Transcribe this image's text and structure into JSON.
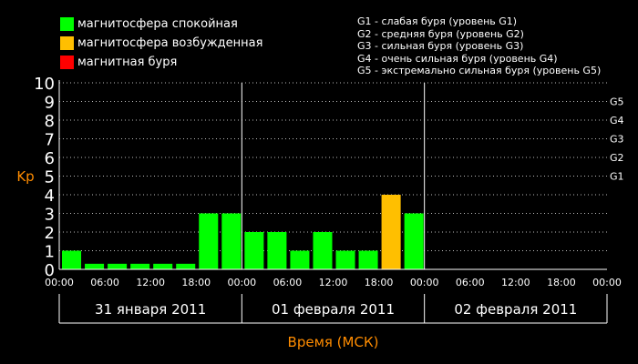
{
  "legend": [
    {
      "label": "магнитосфера спокойная",
      "color": "#00ff00"
    },
    {
      "label": "магнитосфера возбужденная",
      "color": "#ffbf00"
    },
    {
      "label": "магнитная буря",
      "color": "#ff0000"
    }
  ],
  "storm_levels": [
    "G1 - слабая буря (уровень G1)",
    "G2 - средняя буря (уровень G2)",
    "G3 - сильная буря (уровень G3)",
    "G4 - очень сильная буря (уровень G4)",
    "G5 - экстремально сильная буря (уровень G5)"
  ],
  "chart_data": {
    "type": "bar",
    "ylabel": "Kp",
    "xlabel": "Время (МСК)",
    "ylim": [
      0,
      10
    ],
    "yticks": [
      0,
      1,
      2,
      3,
      4,
      5,
      6,
      7,
      8,
      9,
      10
    ],
    "right_ticks": [
      {
        "label": "G1",
        "value": 5
      },
      {
        "label": "G2",
        "value": 6
      },
      {
        "label": "G3",
        "value": 7
      },
      {
        "label": "G4",
        "value": 8
      },
      {
        "label": "G5",
        "value": 9
      }
    ],
    "x_tick_labels": [
      "00:00",
      "06:00",
      "12:00",
      "18:00",
      "00:00",
      "06:00",
      "12:00",
      "18:00",
      "00:00",
      "06:00",
      "12:00",
      "18:00",
      "00:00"
    ],
    "days": [
      "31 января 2011",
      "01 февраля 2011",
      "02 февраля 2011"
    ],
    "grid": true,
    "series": [
      {
        "values": [
          1,
          0.3,
          0.3,
          0.3,
          0.3,
          0.3,
          3,
          3,
          2,
          2,
          1,
          2,
          1,
          1,
          4,
          3
        ],
        "colors": [
          "#00ff00",
          "#00ff00",
          "#00ff00",
          "#00ff00",
          "#00ff00",
          "#00ff00",
          "#00ff00",
          "#00ff00",
          "#00ff00",
          "#00ff00",
          "#00ff00",
          "#00ff00",
          "#00ff00",
          "#00ff00",
          "#ffbf00",
          "#00ff00"
        ]
      }
    ]
  }
}
